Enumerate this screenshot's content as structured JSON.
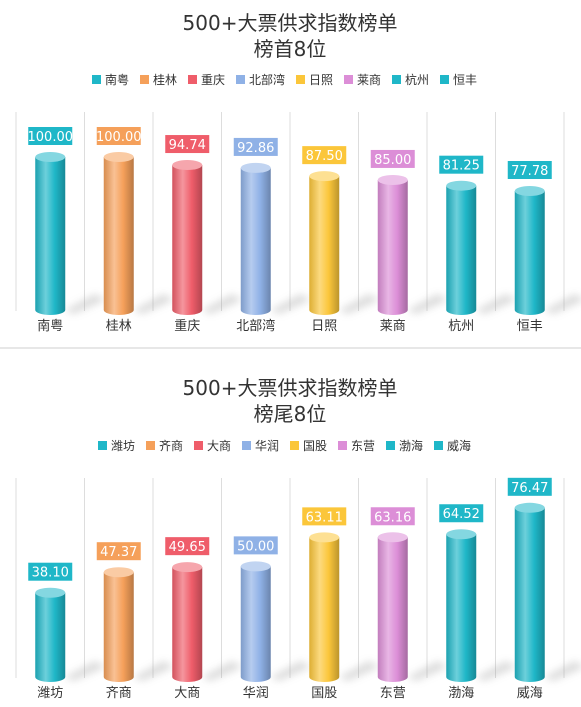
{
  "colors": [
    "#1fb7c8",
    "#f5a05a",
    "#ef5d6a",
    "#8fb1e6",
    "#fbc63a",
    "#dc8ed7",
    "#1fb7c8",
    "#1fb7c8"
  ],
  "chart_data": [
    {
      "type": "bar",
      "title": "500+大票供求指数榜单",
      "subtitle": "榜首8位",
      "categories": [
        "南粤",
        "桂林",
        "重庆",
        "北部湾",
        "日照",
        "莱商",
        "杭州",
        "恒丰"
      ],
      "values": [
        100.0,
        100.0,
        94.74,
        92.86,
        87.5,
        85.0,
        81.25,
        77.78
      ],
      "value_labels": [
        "100.00",
        "100.00",
        "94.74",
        "92.86",
        "87.50",
        "85.00",
        "81.25",
        "77.78"
      ],
      "ylim": [
        0,
        100
      ],
      "legend": "top",
      "grid": "vertical separators",
      "bar_style": "3d-cylinder"
    },
    {
      "type": "bar",
      "title": "500+大票供求指数榜单",
      "subtitle": "榜尾8位",
      "categories": [
        "潍坊",
        "齐商",
        "大商",
        "华润",
        "国股",
        "东营",
        "渤海",
        "威海"
      ],
      "values": [
        38.1,
        47.37,
        49.65,
        50.0,
        63.11,
        63.16,
        64.52,
        76.47
      ],
      "value_labels": [
        "38.10",
        "47.37",
        "49.65",
        "50.00",
        "63.11",
        "63.16",
        "64.52",
        "76.47"
      ],
      "ylim": [
        0,
        80
      ],
      "legend": "top",
      "grid": "vertical separators",
      "bar_style": "3d-cylinder"
    }
  ]
}
